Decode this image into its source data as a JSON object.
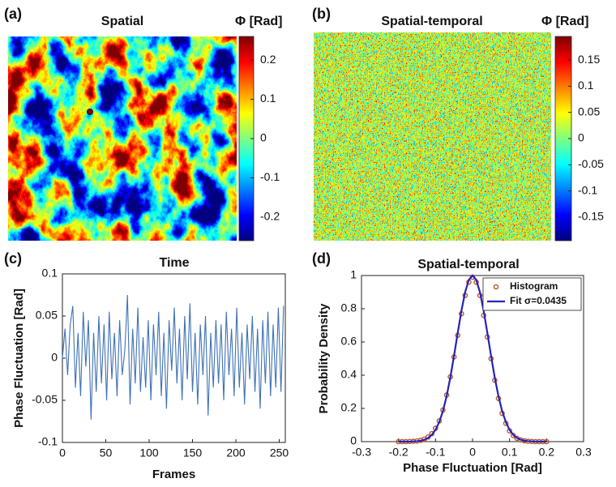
{
  "chart_data": [
    {
      "type": "image",
      "panel_label": "(a)",
      "title": "Spatial",
      "colorbar_label": "Φ [Rad]",
      "colormap": "jet",
      "clim": [
        -0.26,
        0.26
      ],
      "colorbar_ticks": [
        0.2,
        0.1,
        0,
        -0.1,
        -0.2
      ]
    },
    {
      "type": "image",
      "panel_label": "(b)",
      "title": "Spatial-temporal",
      "colorbar_label": "Φ [Rad]",
      "colormap": "jet",
      "clim": [
        -0.195,
        0.195
      ],
      "colorbar_ticks": [
        0.15,
        0.1,
        0.05,
        0,
        -0.05,
        -0.1,
        -0.15
      ]
    },
    {
      "type": "line",
      "panel_label": "(c)",
      "title": "Time",
      "x_label": "Frames",
      "y_label": "Phase Fluctuation [Rad]",
      "xlim": [
        0,
        257
      ],
      "ylim": [
        -0.1,
        0.1
      ],
      "xticks": [
        0,
        50,
        100,
        150,
        200,
        250
      ],
      "yticks": [
        -0.1,
        -0.05,
        0,
        0.05,
        0.1
      ],
      "grid": false,
      "x": [
        0,
        3,
        6,
        9,
        12,
        15,
        18,
        21,
        24,
        27,
        30,
        33,
        36,
        39,
        42,
        45,
        48,
        51,
        54,
        57,
        60,
        63,
        66,
        69,
        72,
        75,
        78,
        81,
        84,
        87,
        90,
        93,
        96,
        99,
        102,
        105,
        108,
        111,
        114,
        117,
        120,
        123,
        126,
        129,
        132,
        135,
        138,
        141,
        144,
        147,
        150,
        153,
        156,
        159,
        162,
        165,
        168,
        171,
        174,
        177,
        180,
        183,
        186,
        189,
        192,
        195,
        198,
        201,
        204,
        207,
        210,
        213,
        216,
        219,
        222,
        225,
        228,
        231,
        234,
        237,
        240,
        243,
        246,
        249,
        252,
        255
      ],
      "series": [
        {
          "color": "#3f72b5",
          "values": [
            0,
            0.035,
            -0.02,
            0.04,
            0.062,
            -0.035,
            0.03,
            -0.045,
            0.055,
            -0.01,
            0.045,
            -0.073,
            0.03,
            -0.04,
            0.05,
            -0.03,
            0.04,
            -0.05,
            0.055,
            -0.025,
            0.03,
            -0.045,
            0.045,
            -0.02,
            0.01,
            0.075,
            -0.055,
            0.035,
            -0.03,
            0.06,
            -0.04,
            0.025,
            -0.035,
            0.045,
            -0.05,
            0.04,
            -0.02,
            0.055,
            -0.045,
            0.03,
            -0.06,
            0.045,
            -0.015,
            0.06,
            -0.03,
            0.035,
            -0.05,
            0.05,
            -0.025,
            0.065,
            -0.04,
            0.03,
            -0.055,
            0.04,
            -0.02,
            0.05,
            -0.068,
            0.03,
            -0.035,
            0.045,
            -0.03,
            0.04,
            -0.05,
            0.055,
            -0.02,
            0.035,
            -0.045,
            0.06,
            -0.035,
            0.03,
            -0.055,
            0.04,
            -0.025,
            0.05,
            -0.04,
            0.035,
            -0.06,
            0.045,
            -0.03,
            0.055,
            -0.045,
            0.04,
            -0.035,
            0.06,
            -0.04,
            0.062
          ]
        }
      ]
    },
    {
      "type": "combo",
      "panel_label": "(d)",
      "title": "Spatial-temporal",
      "x_label": "Phase Fluctuation [Rad]",
      "y_label": "Probability Density",
      "xlim": [
        -0.3,
        0.3
      ],
      "ylim": [
        0,
        1
      ],
      "xticks": [
        -0.3,
        -0.2,
        -0.1,
        0,
        0.1,
        0.2,
        0.3
      ],
      "yticks": [
        0,
        0.2,
        0.4,
        0.6,
        0.8,
        1
      ],
      "grid": false,
      "legend": "northeast",
      "series": [
        {
          "name": "Histogram",
          "type": "scatter",
          "color": "#b9582a",
          "x": [
            -0.2,
            -0.19,
            -0.18,
            -0.17,
            -0.16,
            -0.15,
            -0.14,
            -0.13,
            -0.12,
            -0.11,
            -0.1,
            -0.09,
            -0.08,
            -0.07,
            -0.06,
            -0.05,
            -0.04,
            -0.03,
            -0.02,
            -0.01,
            0,
            0.01,
            0.02,
            0.03,
            0.04,
            0.05,
            0.06,
            0.07,
            0.08,
            0.09,
            0.1,
            0.11,
            0.12,
            0.13,
            0.14,
            0.15,
            0.16,
            0.17,
            0.18,
            0.19,
            0.2
          ],
          "values": [
            0,
            0,
            0,
            0.001,
            0.002,
            0.004,
            0.008,
            0.015,
            0.028,
            0.048,
            0.08,
            0.125,
            0.19,
            0.28,
            0.39,
            0.51,
            0.64,
            0.77,
            0.88,
            0.96,
            0.99,
            0.96,
            0.88,
            0.76,
            0.63,
            0.5,
            0.37,
            0.26,
            0.17,
            0.11,
            0.065,
            0.037,
            0.02,
            0.01,
            0.005,
            0.002,
            0.001,
            0,
            0,
            0,
            0
          ]
        },
        {
          "name": "Fit σ=0.0435",
          "type": "line",
          "color": "#2424b8",
          "x": [
            -0.2,
            -0.19,
            -0.18,
            -0.17,
            -0.16,
            -0.15,
            -0.14,
            -0.13,
            -0.12,
            -0.11,
            -0.1,
            -0.09,
            -0.08,
            -0.07,
            -0.06,
            -0.05,
            -0.04,
            -0.03,
            -0.02,
            -0.01,
            0,
            0.01,
            0.02,
            0.03,
            0.04,
            0.05,
            0.06,
            0.07,
            0.08,
            0.09,
            0.1,
            0.11,
            0.12,
            0.13,
            0.14,
            0.15,
            0.16,
            0.17,
            0.18,
            0.19,
            0.2
          ],
          "values": [
            0,
            0,
            0,
            0,
            0.0012,
            0.0026,
            0.0056,
            0.0115,
            0.022,
            0.041,
            0.071,
            0.118,
            0.184,
            0.274,
            0.386,
            0.517,
            0.655,
            0.788,
            0.9,
            0.974,
            1,
            0.974,
            0.9,
            0.788,
            0.655,
            0.517,
            0.386,
            0.274,
            0.184,
            0.118,
            0.071,
            0.041,
            0.022,
            0.0115,
            0.0056,
            0.0026,
            0.0012,
            0,
            0,
            0,
            0
          ]
        }
      ]
    }
  ]
}
